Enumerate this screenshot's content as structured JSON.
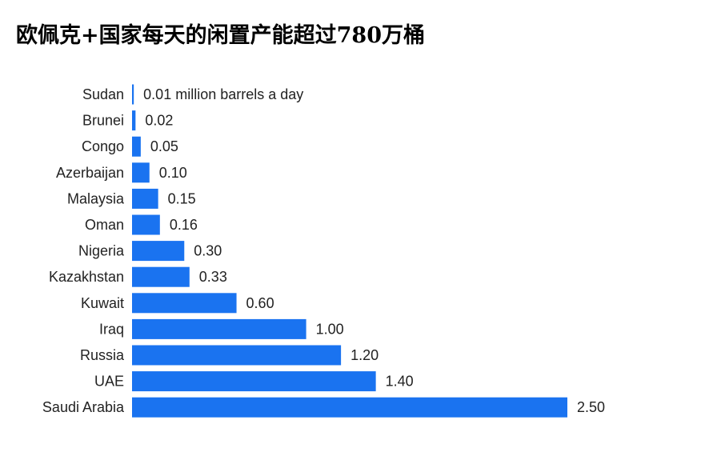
{
  "title": "欧佩克+国家每天的闲置产能超过780万桶",
  "chart_data": {
    "type": "bar",
    "orientation": "horizontal",
    "title": "欧佩克+国家每天的闲置产能超过780万桶",
    "unit_label": "million barrels a day",
    "categories": [
      "Sudan",
      "Brunei",
      "Congo",
      "Azerbaijan",
      "Malaysia",
      "Oman",
      "Nigeria",
      "Kazakhstan",
      "Kuwait",
      "Iraq",
      "Russia",
      "UAE",
      "Saudi Arabia"
    ],
    "values": [
      0.01,
      0.02,
      0.05,
      0.1,
      0.15,
      0.16,
      0.3,
      0.33,
      0.6,
      1.0,
      1.2,
      1.4,
      2.5
    ],
    "value_labels": [
      "0.01 million barrels a day",
      "0.02",
      "0.05",
      "0.10",
      "0.15",
      "0.16",
      "0.30",
      "0.33",
      "0.60",
      "1.00",
      "1.20",
      "1.40",
      "2.50"
    ],
    "xlim": [
      0,
      2.5
    ],
    "bar_color": "#1a73f0",
    "grid": false,
    "legend": "none"
  }
}
